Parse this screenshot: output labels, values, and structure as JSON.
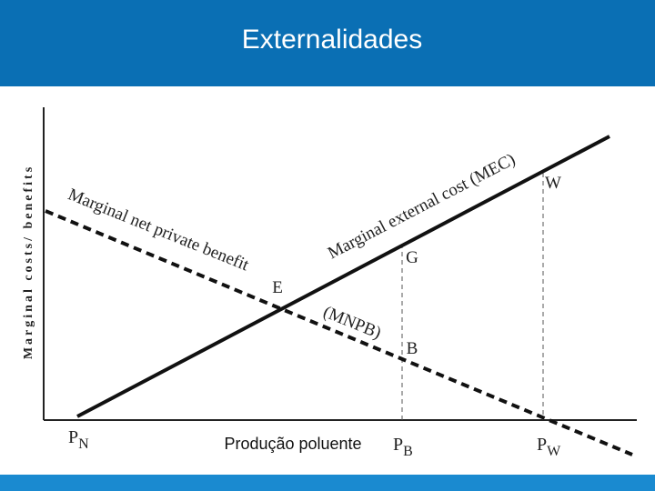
{
  "header": {
    "title": "Externalidades"
  },
  "axis": {
    "y_label": "Marginal costs/ benefits",
    "x_label": "Produção poluente"
  },
  "curves": {
    "mec": "Marginal external cost (MEC)",
    "mnpb": [
      "Marginal net private benefit",
      "(MNPB)"
    ]
  },
  "points": {
    "e": "E",
    "g": "G",
    "b": "B",
    "w": "W"
  },
  "x_points": [
    {
      "main": "P",
      "sub": "N"
    },
    {
      "main": "P",
      "sub": "B"
    },
    {
      "main": "P",
      "sub": "W"
    }
  ]
}
